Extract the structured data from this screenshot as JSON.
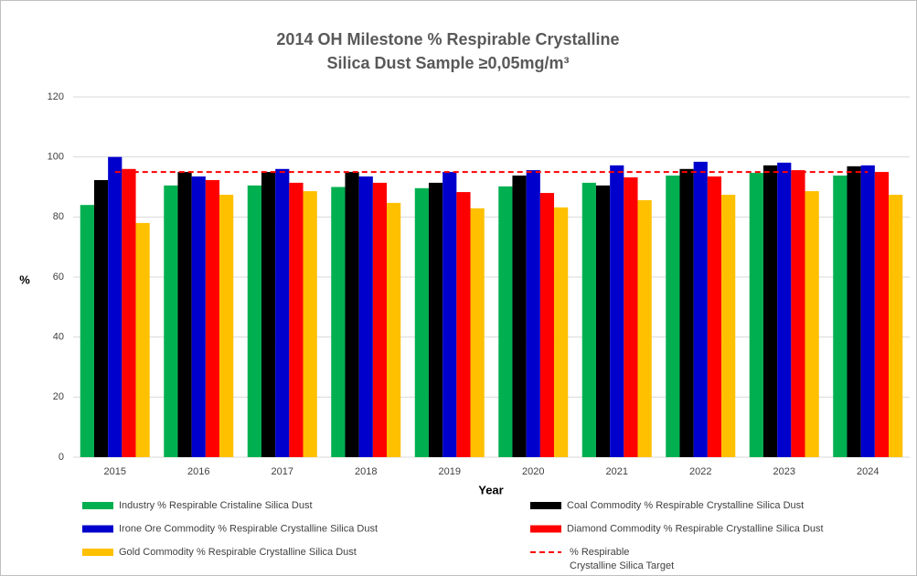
{
  "chart_data": {
    "type": "bar",
    "title": [
      "2014 OH Milestone % Respirable Crystalline",
      "Silica Dust Sample ≥0,05mg/m³"
    ],
    "x_label": "Year",
    "y_label": "%",
    "categories": [
      "2015",
      "2016",
      "2017",
      "2018",
      "2019",
      "2020",
      "2021",
      "2022",
      "2023",
      "2024"
    ],
    "series": [
      {
        "name": "Industry % Respirable Cristaline Silica Dust",
        "color": "#00b050",
        "values": [
          84,
          90.5,
          90.5,
          90,
          89.6,
          90.2,
          91.4,
          93.8,
          94.7,
          93.8
        ]
      },
      {
        "name": "Coal Commodity % Respirable  Crystalline Silica Dust",
        "color": "#000000",
        "values": [
          92.3,
          95,
          95,
          95,
          91.4,
          93.8,
          90.5,
          96,
          97.2,
          96.9
        ]
      },
      {
        "name": "Irone Ore Commodity % Respirable  Crystalline Silica Dust",
        "color": "#0000cc",
        "values": [
          100,
          93.5,
          96,
          93.5,
          95,
          95.6,
          97.2,
          98.4,
          98.1,
          97.2
        ]
      },
      {
        "name": "Diamond Commodity % Respirable  Crystalline Silica Dust",
        "color": "#ff0000",
        "values": [
          96,
          92.3,
          91.4,
          91.4,
          88.3,
          88,
          93.2,
          93.5,
          95.6,
          95
        ]
      },
      {
        "name": "Gold Commodity % Respirable  Crystalline Silica Dust",
        "color": "#ffc000",
        "values": [
          78,
          87.4,
          88.6,
          84.7,
          82.9,
          83.2,
          85.6,
          87.4,
          88.6,
          87.4
        ]
      }
    ],
    "target": {
      "name": [
        "% Respirable",
        "Crystalline Silica Target"
      ],
      "value": 95,
      "color": "#ff0000",
      "dashed": true
    },
    "ylim": [
      0,
      120
    ],
    "yticks": [
      0,
      20,
      40,
      60,
      80,
      100,
      120
    ],
    "grid": true
  }
}
